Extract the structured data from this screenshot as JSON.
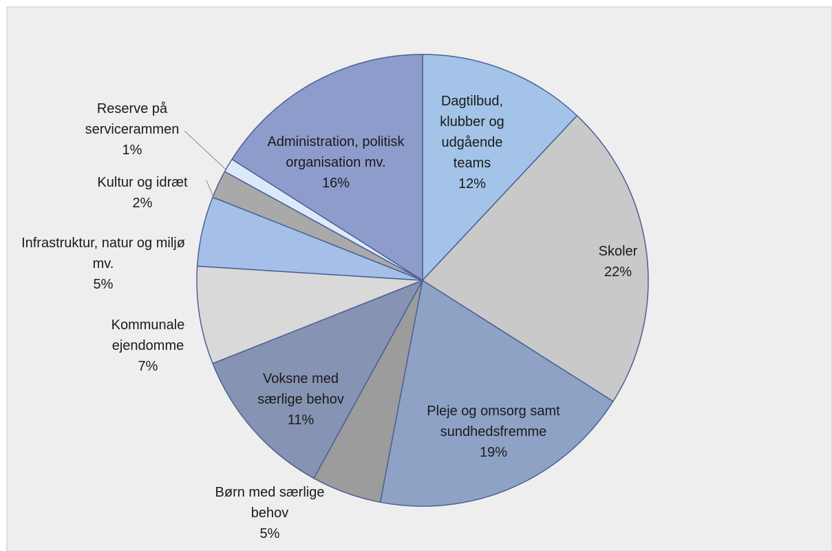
{
  "chart_data": {
    "type": "pie",
    "categories": [
      "Dagtilbud, klubber og udgående teams",
      "Skoler",
      "Pleje og omsorg samt sundhedsfremme",
      "Børn med særlige behov",
      "Voksne med særlige behov",
      "Kommunale ejendomme",
      "Infrastruktur, natur og miljø mv.",
      "Kultur og idræt",
      "Reserve på servicerammen",
      "Administration, politisk organisation mv."
    ],
    "values": [
      12,
      22,
      19,
      5,
      11,
      7,
      5,
      2,
      1,
      16
    ],
    "value_labels": [
      "12%",
      "22%",
      "19%",
      "5%",
      "11%",
      "7%",
      "5%",
      "2%",
      "1%",
      "16%"
    ],
    "colors": [
      "#a3c4e8",
      "#c9c9c9",
      "#8ea2c6",
      "#9c9c9c",
      "#8793b3",
      "#d9d9d9",
      "#a6bfe9",
      "#a9a9a9",
      "#dce9f8",
      "#8e9ccc"
    ]
  }
}
